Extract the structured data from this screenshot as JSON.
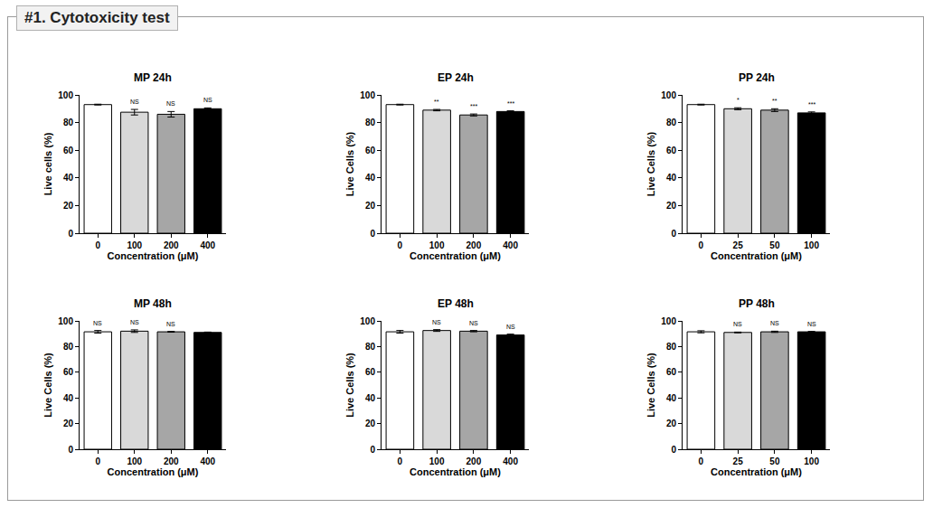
{
  "title": "#1. Cytotoxicity test",
  "chart_data": [
    {
      "type": "bar",
      "title": "MP 24h",
      "xlabel": "Concentration (μM)",
      "ylabel": "Live cells (%)",
      "categories": [
        "0",
        "100",
        "200",
        "400"
      ],
      "values": [
        93,
        87.5,
        86,
        90
      ],
      "errors": [
        0.3,
        2,
        2,
        0.6
      ],
      "significance": [
        null,
        "NS",
        "NS",
        "NS"
      ],
      "colors": [
        "#ffffff",
        "#d9d9d9",
        "#a6a6a6",
        "#000000"
      ],
      "ylim": [
        0,
        100
      ],
      "yticks": [
        0,
        20,
        40,
        60,
        80,
        100
      ]
    },
    {
      "type": "bar",
      "title": "EP 24h",
      "xlabel": "Concentration (μM)",
      "ylabel": "Live Cells (%)",
      "categories": [
        "0",
        "100",
        "200",
        "400"
      ],
      "values": [
        93,
        89,
        85.5,
        88
      ],
      "errors": [
        0.3,
        0.5,
        0.7,
        0.5
      ],
      "significance": [
        null,
        "**",
        "***",
        "***"
      ],
      "colors": [
        "#ffffff",
        "#d9d9d9",
        "#a6a6a6",
        "#000000"
      ],
      "ylim": [
        0,
        100
      ],
      "yticks": [
        0,
        20,
        40,
        60,
        80,
        100
      ]
    },
    {
      "type": "bar",
      "title": "PP 24h",
      "xlabel": "Concentration (μM)",
      "ylabel": "Live Cells (%)",
      "categories": [
        "0",
        "25",
        "50",
        "100"
      ],
      "values": [
        93,
        90,
        89,
        87
      ],
      "errors": [
        0.3,
        0.7,
        1,
        0.7
      ],
      "significance": [
        null,
        "*",
        "**",
        "***"
      ],
      "colors": [
        "#ffffff",
        "#d9d9d9",
        "#a6a6a6",
        "#000000"
      ],
      "ylim": [
        0,
        100
      ],
      "yticks": [
        0,
        20,
        40,
        60,
        80,
        100
      ]
    },
    {
      "type": "bar",
      "title": "MP 48h",
      "xlabel": "Concentration (μM)",
      "ylabel": "Live Cells (%)",
      "categories": [
        "0",
        "100",
        "200",
        "400"
      ],
      "values": [
        91.5,
        92,
        91.5,
        91
      ],
      "errors": [
        1,
        1,
        0.3,
        0.3
      ],
      "significance": [
        "NS",
        "NS",
        "NS",
        null
      ],
      "colors": [
        "#ffffff",
        "#d9d9d9",
        "#a6a6a6",
        "#000000"
      ],
      "ylim": [
        0,
        100
      ],
      "yticks": [
        0,
        20,
        40,
        60,
        80,
        100
      ]
    },
    {
      "type": "bar",
      "title": "EP 48h",
      "xlabel": "Concentration (μM)",
      "ylabel": "Live Cells (%)",
      "categories": [
        "0",
        "100",
        "200",
        "400"
      ],
      "values": [
        91.5,
        92.5,
        92,
        89
      ],
      "errors": [
        1,
        0.7,
        0.5,
        0.7
      ],
      "significance": [
        null,
        "NS",
        "NS",
        "NS"
      ],
      "colors": [
        "#ffffff",
        "#d9d9d9",
        "#a6a6a6",
        "#000000"
      ],
      "ylim": [
        0,
        100
      ],
      "yticks": [
        0,
        20,
        40,
        60,
        80,
        100
      ]
    },
    {
      "type": "bar",
      "title": "PP 48h",
      "xlabel": "Concentration (μM)",
      "ylabel": "Live Cells (%)",
      "categories": [
        "0",
        "25",
        "50",
        "100"
      ],
      "values": [
        91.5,
        91,
        91.5,
        91.5
      ],
      "errors": [
        0.8,
        0.3,
        0.5,
        0.3
      ],
      "significance": [
        null,
        "NS",
        "NS",
        "NS"
      ],
      "colors": [
        "#ffffff",
        "#d9d9d9",
        "#a6a6a6",
        "#000000"
      ],
      "ylim": [
        0,
        100
      ],
      "yticks": [
        0,
        20,
        40,
        60,
        80,
        100
      ]
    }
  ]
}
